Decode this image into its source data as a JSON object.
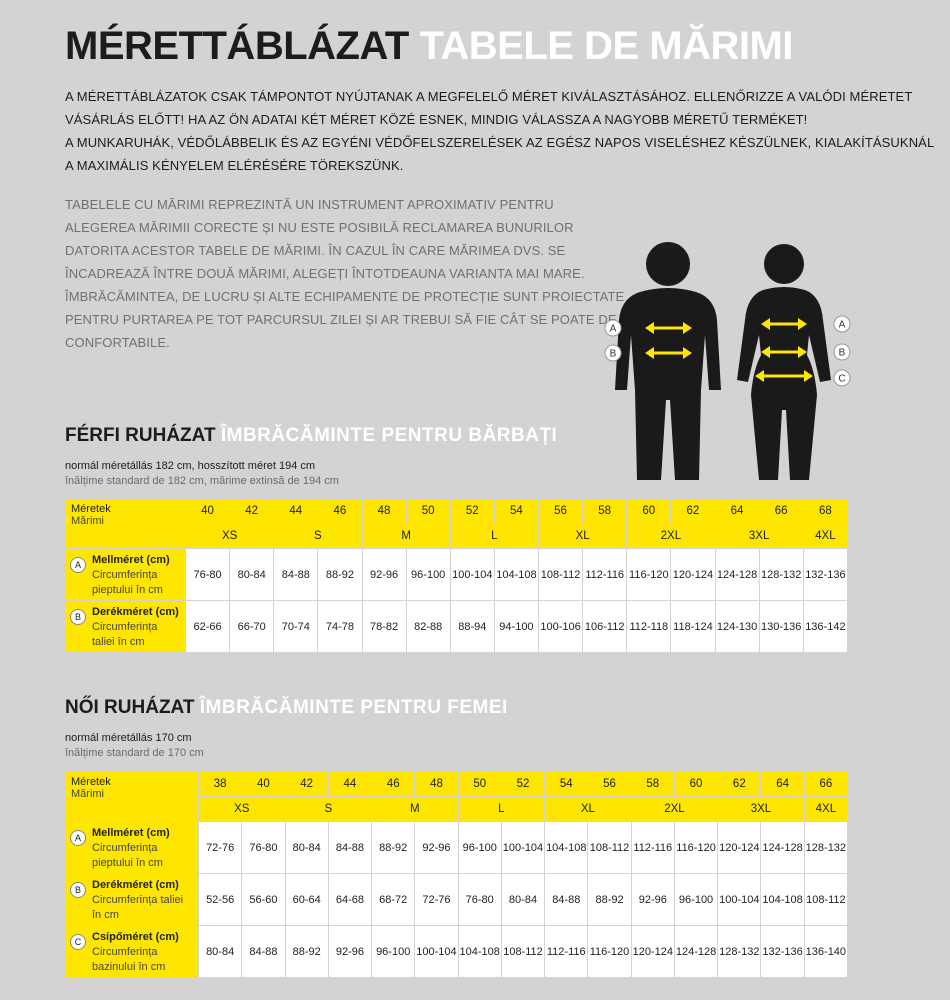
{
  "header": {
    "title_hu": "MÉRETTÁBLÁZAT",
    "title_ro": "TABELE DE MĂRIMI"
  },
  "intro_hu": [
    "A MÉRETTÁBLÁZATOK CSAK TÁMPONTOT NYÚJTANAK A MEGFELELŐ MÉRET KIVÁLASZTÁSÁHOZ. ELLENŐRIZZE A VALÓDI MÉRETET",
    "VÁSÁRLÁS ELŐTT! HA AZ ÖN ADATAI KÉT MÉRET KÖZÉ ESNEK, MINDIG VÁLASSZA A NAGYOBB MÉRETŰ TERMÉKET!",
    "A MUNKARUHÁK, VÉDŐLÁBBELIK ÉS AZ EGYÉNI VÉDŐFELSZERELÉSEK AZ EGÉSZ NAPOS VISELÉSHEZ KÉSZÜLNEK, KIALAKÍTÁSUKNÁL",
    "A MAXIMÁLIS KÉNYELEM ELÉRÉSÉRE TÖREKSZÜNK."
  ],
  "intro_ro": [
    "TABELELE CU MĂRIMI REPREZINTĂ UN INSTRUMENT APROXIMATIV PENTRU",
    "ALEGEREA MĂRIMII CORECTE ȘI NU ESTE POSIBILĂ RECLAMAREA BUNURILOR",
    "DATORITA ACESTOR TABELE DE MĂRIMI. ÎN CAZUL ÎN CARE MĂRIMEA DVS. SE",
    "ÎNCADREAZĂ ÎNTRE DOUĂ MĂRIMI, ALEGEȚI ÎNTOTDEAUNA VARIANTA MAI MARE.",
    "ÎMBRĂCĂMINTEA, DE LUCRU ȘI ALTE ECHIPAMENTE DE PROTECȚIE SUNT PROIECTATE",
    "PENTRU PURTAREA PE TOT PARCURSUL ZILEI ȘI AR TREBUI SĂ FIE CÂT SE POATE DE",
    "CONFORTABILE."
  ],
  "figure": {
    "male_labels": [
      "A",
      "B"
    ],
    "female_labels": [
      "A",
      "B",
      "C"
    ]
  },
  "sections": [
    {
      "title_hu": "FÉRFI RUHÁZAT",
      "title_ro": "ÎMBRĂCĂMINTE PENTRU BĂRBAȚI",
      "note_hu": "normál méretállás 182 cm, hosszított méret 194 cm",
      "note_ro": "înălțime standard de 182 cm, mărime extinsă de 194 cm",
      "table": {
        "label_hu": "Méretek",
        "label_ro": "Mărimi",
        "sizes": [
          40,
          42,
          44,
          46,
          48,
          50,
          52,
          54,
          56,
          58,
          60,
          62,
          64,
          66,
          68
        ],
        "letters": [
          "XS",
          null,
          "S",
          null,
          "M",
          null,
          "L",
          null,
          "XL",
          null,
          "2XL",
          null,
          "3XL",
          null,
          "4XL"
        ],
        "rows": [
          {
            "letter": "A",
            "name_hu": "Mellméret (cm)",
            "name_ro": "Circumferința pieptului în cm",
            "values": [
              "76-80",
              "80-84",
              "84-88",
              "88-92",
              "92-96",
              "96-100",
              "100-104",
              "104-108",
              "108-112",
              "112-116",
              "116-120",
              "120-124",
              "124-128",
              "128-132",
              "132-136"
            ]
          },
          {
            "letter": "B",
            "name_hu": "Derékméret (cm)",
            "name_ro": "Circumferința taliei în cm",
            "values": [
              "62-66",
              "66-70",
              "70-74",
              "74-78",
              "78-82",
              "82-88",
              "88-94",
              "94-100",
              "100-106",
              "106-112",
              "112-118",
              "118-124",
              "124-130",
              "130-136",
              "136-142"
            ]
          }
        ]
      }
    },
    {
      "title_hu": "NŐI RUHÁZAT",
      "title_ro": "ÎMBRĂCĂMINTE PENTRU FEMEI",
      "note_hu": "normál méretállás 170 cm",
      "note_ro": "înălțime standard de 170 cm",
      "table": {
        "label_hu": "Méretek",
        "label_ro": "Mărimi",
        "sizes": [
          38,
          40,
          42,
          44,
          46,
          48,
          50,
          52,
          54,
          56,
          58,
          60,
          62,
          64,
          66
        ],
        "letters": [
          "XS",
          null,
          "S",
          null,
          "M",
          null,
          "L",
          null,
          "XL",
          null,
          "2XL",
          null,
          "3XL",
          null,
          "4XL"
        ],
        "rows": [
          {
            "letter": "A",
            "name_hu": "Mellméret (cm)",
            "name_ro": "Circumferința pieptului în cm",
            "values": [
              "72-76",
              "76-80",
              "80-84",
              "84-88",
              "88-92",
              "92-96",
              "96-100",
              "100-104",
              "104-108",
              "108-112",
              "112-116",
              "116-120",
              "120-124",
              "124-128",
              "128-132"
            ]
          },
          {
            "letter": "B",
            "name_hu": "Derékméret (cm)",
            "name_ro": "Circumferința taliei în cm",
            "values": [
              "52-56",
              "56-60",
              "60-64",
              "64-68",
              "68-72",
              "72-76",
              "76-80",
              "80-84",
              "84-88",
              "88-92",
              "92-96",
              "96-100",
              "100-104",
              "104-108",
              "108-112"
            ]
          },
          {
            "letter": "C",
            "name_hu": "Csípőméret (cm)",
            "name_ro": "Circumferința bazinului în cm",
            "values": [
              "80-84",
              "84-88",
              "88-92",
              "92-96",
              "96-100",
              "100-104",
              "104-108",
              "108-112",
              "112-116",
              "116-120",
              "120-124",
              "124-128",
              "128-132",
              "132-136",
              "136-140"
            ]
          }
        ]
      }
    }
  ]
}
